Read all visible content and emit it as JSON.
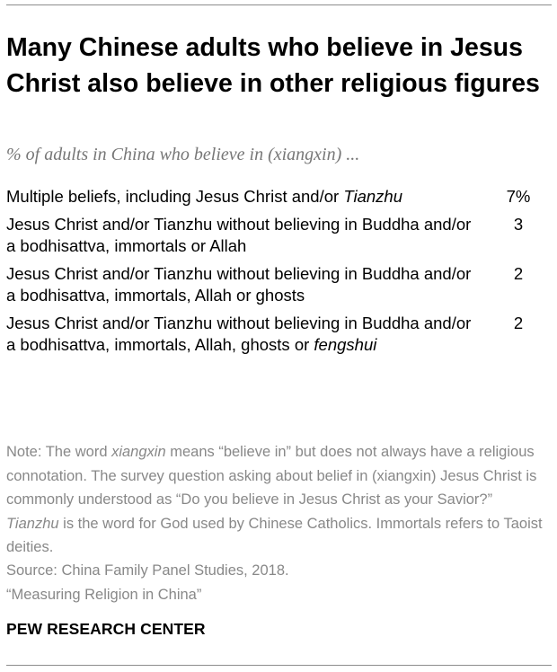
{
  "title": "Many Chinese adults who believe in Jesus Christ also believe in other religious figures",
  "subtitle": "% of adults in China who believe in (xiangxin) ...",
  "chart_data": {
    "type": "table",
    "title": "Many Chinese adults who believe in Jesus Christ also believe in other religious figures",
    "subtitle": "% of adults in China who believe in (xiangxin) ...",
    "unit": "%",
    "rows": [
      {
        "label_parts": [
          {
            "text": "Multiple beliefs, including Jesus Christ and/or ",
            "italic": false
          },
          {
            "text": "Tianzhu",
            "italic": true
          }
        ],
        "value": 7,
        "display": "7%"
      },
      {
        "label_parts": [
          {
            "text": "Jesus Christ and/or Tianzhu without believing in Buddha and/or a bodhisattva, immortals or Allah",
            "italic": false
          }
        ],
        "value": 3,
        "display": "3"
      },
      {
        "label_parts": [
          {
            "text": "Jesus Christ and/or Tianzhu without believing in Buddha and/or a bodhisattva, immortals, Allah or ghosts",
            "italic": false
          }
        ],
        "value": 2,
        "display": "2"
      },
      {
        "label_parts": [
          {
            "text": "Jesus Christ and/or Tianzhu without believing in Buddha and/or a bodhisattva, immortals, Allah, ghosts or ",
            "italic": false
          },
          {
            "text": "fengshui",
            "italic": true
          }
        ],
        "value": 2,
        "display": "2"
      }
    ]
  },
  "note_parts": [
    {
      "text": "Note: The word ",
      "italic": false
    },
    {
      "text": "xiangxin",
      "italic": true
    },
    {
      "text": " means “believe in” but does not always have a religious connotation. The survey question asking about belief in (xiangxin) Jesus Christ is commonly understood as “Do you believe in Jesus Christ as your Savior?” ",
      "italic": false
    },
    {
      "text": "Tianzhu",
      "italic": true
    },
    {
      "text": " is the word for God used by Chinese Catholics. Immortals refers to Taoist deities.",
      "italic": false
    }
  ],
  "source_lines": [
    "Source: China Family Panel Studies, 2018.",
    "“Measuring Religion in China”"
  ],
  "brand": "PEW RESEARCH CENTER"
}
